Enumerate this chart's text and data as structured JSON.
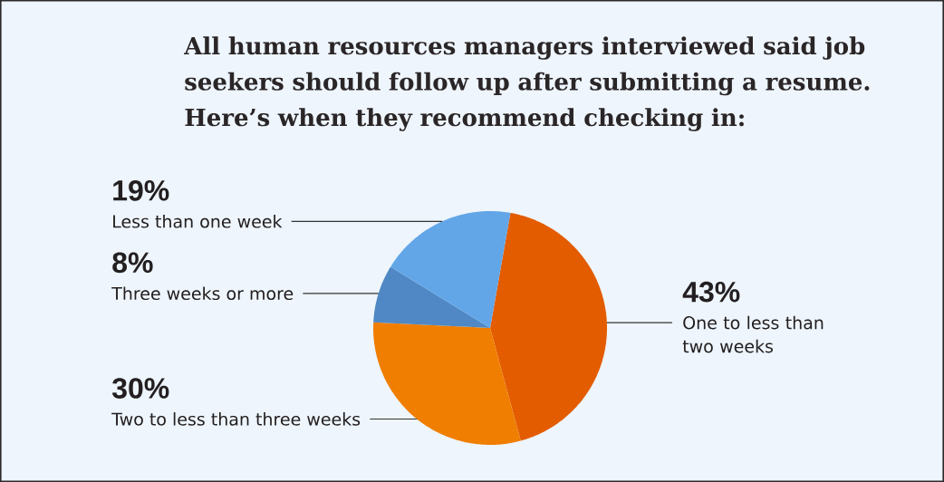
{
  "chart_data": {
    "type": "pie",
    "title": "All human resources managers interviewed said job seekers should follow up after submitting a resume. Here’s when they recommend checking in:",
    "categories": [
      "One to less than two weeks",
      "Two to less than three weeks",
      "Three weeks or more",
      "Less than one week"
    ],
    "values": [
      43,
      30,
      8,
      19
    ],
    "colors": [
      "#e35c00",
      "#f07e00",
      "#4f88c4",
      "#62a6e8"
    ],
    "value_labels": [
      "43%",
      "30%",
      "8%",
      "19%"
    ]
  }
}
